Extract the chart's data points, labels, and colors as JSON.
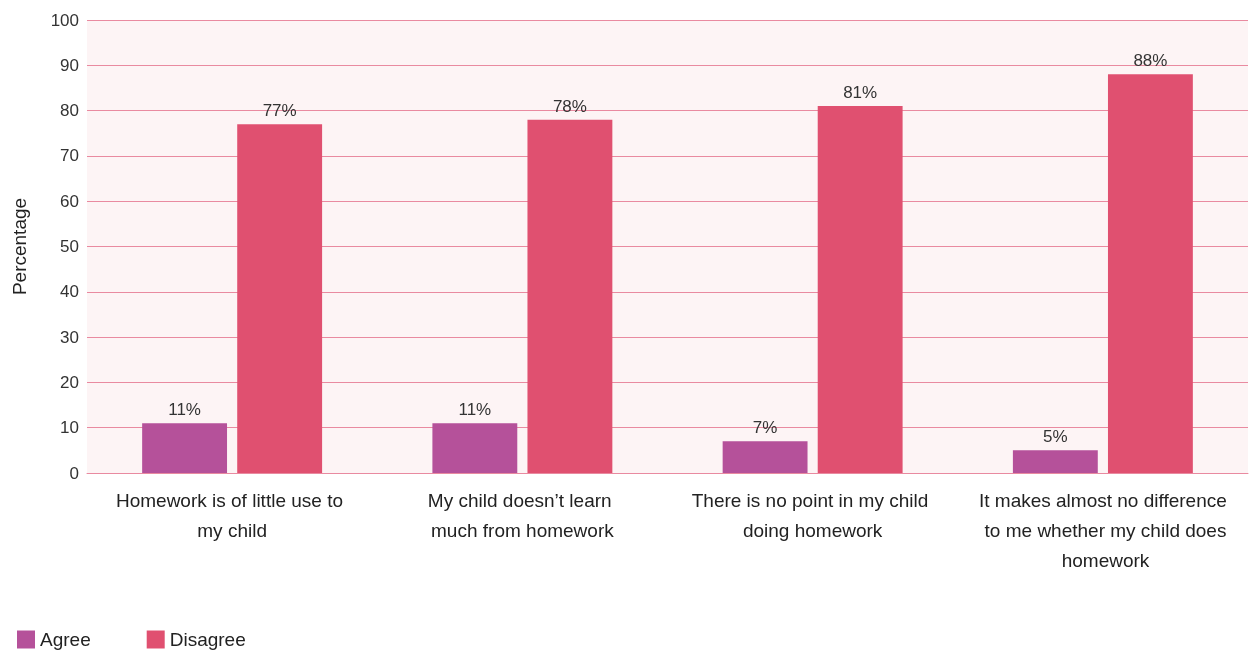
{
  "chart_data": {
    "type": "bar",
    "ylabel": "Percentage",
    "categories": [
      "Homework is of little use to my child",
      "My child doesn’t learn much from homework",
      "There is no point in my child doing homework",
      "It makes almost no difference to me whether my child does homework"
    ],
    "series": [
      {
        "name": "Agree",
        "color": "#b5519a",
        "values": [
          11,
          11,
          7,
          5
        ],
        "value_labels": [
          "11%",
          "11%",
          "7%",
          "5%"
        ]
      },
      {
        "name": "Disagree",
        "color": "#e05070",
        "values": [
          77,
          78,
          81,
          88
        ],
        "value_labels": [
          "77%",
          "78%",
          "81%",
          "88%"
        ]
      }
    ],
    "ylim": [
      0,
      100
    ],
    "yticks": [
      0,
      10,
      20,
      30,
      40,
      50,
      60,
      70,
      80,
      90,
      100
    ],
    "grid": "y",
    "legend": "bottom left"
  }
}
